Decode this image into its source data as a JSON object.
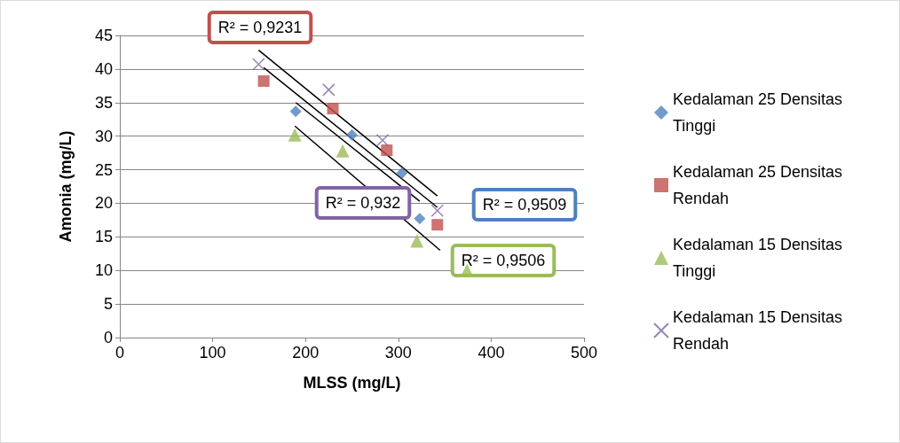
{
  "chart_data": {
    "type": "scatter",
    "xlabel": "MLSS (mg/L)",
    "ylabel": "Amonia (mg/L)",
    "series": [
      {
        "name": "Kedalaman 25 Densitas Tinggi",
        "color": "#4f81bd",
        "marker": "diamond",
        "x": [
          189.5,
          250,
          304,
          323
        ],
        "values": [
          33.7,
          30.2,
          24.5,
          17.7
        ]
      },
      {
        "name": "Kedalaman 25 Densitas Rendah",
        "color": "#c0504d",
        "marker": "square",
        "x": [
          155,
          229.5,
          287.6,
          342
        ],
        "values": [
          38.2,
          34.1,
          27.9,
          16.8
        ]
      },
      {
        "name": "Kedalaman 15 Densitas Tinggi",
        "color": "#9bbb59",
        "marker": "triangle",
        "x": [
          188.5,
          240,
          320,
          374
        ],
        "values": [
          30.2,
          27.8,
          14.4,
          10
        ]
      },
      {
        "name": "Kedalaman 15 Densitas Rendah",
        "color": "#8064a2",
        "marker": "cross",
        "x": [
          149.5,
          225,
          283,
          342
        ],
        "values": [
          40.7,
          36.9,
          29.4,
          18.9
        ]
      },
      {
        "type": "line",
        "color": "#000000",
        "marker": "none",
        "x": [
          189.5,
          323
        ],
        "values": [
          35,
          20.3
        ]
      },
      {
        "type": "line",
        "color": "#000000",
        "marker": "none",
        "x": [
          155,
          342
        ],
        "values": [
          40.2,
          19.4
        ]
      },
      {
        "type": "line",
        "color": "#000000",
        "marker": "none",
        "x": [
          188.5,
          345
        ],
        "values": [
          31.5,
          13
        ]
      },
      {
        "type": "line",
        "color": "#000000",
        "marker": "none",
        "x": [
          149.5,
          342
        ],
        "values": [
          42.8,
          21.1
        ]
      }
    ],
    "annotations": [
      "R² = 0,9509",
      "R² = 0,9231",
      "R² = 0,9506",
      "R² = 0,932"
    ],
    "xlim": [
      0,
      500
    ],
    "xticks": [
      0,
      100,
      200,
      300,
      400,
      500
    ],
    "ylim": [
      0,
      45
    ],
    "yticks": [
      0,
      5,
      10,
      15,
      20,
      25,
      30,
      35,
      40,
      45
    ],
    "grid": "y",
    "legend": "right"
  }
}
